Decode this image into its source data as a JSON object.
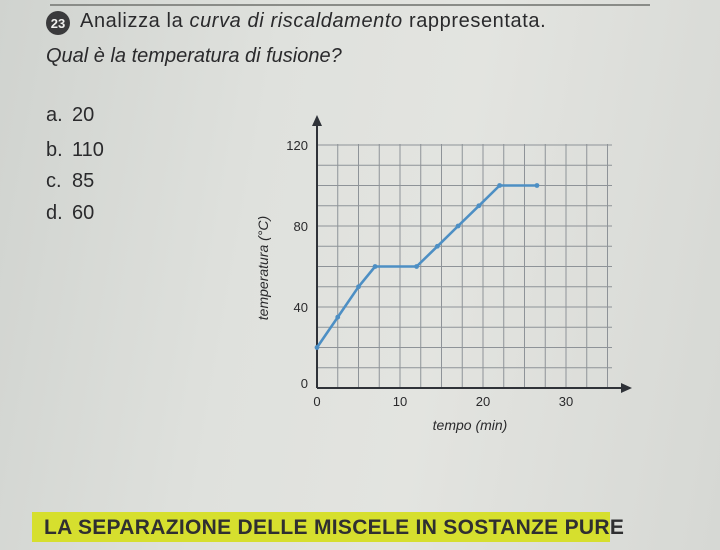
{
  "question": {
    "number": "23",
    "line1_a": "Analizza la ",
    "line1_b": "curva di riscaldamento",
    "line1_c": " rappresentata.",
    "line2": "Qual è la temperatura di fusione?"
  },
  "options": [
    {
      "letter": "a.",
      "value": "20"
    },
    {
      "letter": "b.",
      "value": "110"
    },
    {
      "letter": "c.",
      "value": "85"
    },
    {
      "letter": "d.",
      "value": "60"
    }
  ],
  "chart_data": {
    "type": "line",
    "xlabel": "tempo (min)",
    "ylabel": "temperatura (°C)",
    "x_ticks": [
      0,
      10,
      20,
      30
    ],
    "y_ticks": [
      0,
      40,
      80,
      120
    ],
    "x_tick_labels": [
      "0",
      "10",
      "20",
      "30"
    ],
    "y_tick_labels": [
      "0",
      "40",
      "80",
      "120"
    ],
    "xlim": [
      0,
      36
    ],
    "ylim": [
      0,
      124
    ],
    "grid": true,
    "series": [
      {
        "x": [
          0,
          2.5,
          5,
          7,
          12,
          14.5,
          17,
          19.5,
          22,
          26.5
        ],
        "y": [
          20,
          35,
          50,
          60,
          60,
          70,
          80,
          90,
          100,
          100
        ],
        "color": "#4d8fc4"
      }
    ]
  },
  "footer": {
    "banner_text": "LA SEPARAZIONE DELLE MISCELE IN SOSTANZE PURE",
    "banner_color": "#d6df2e"
  }
}
